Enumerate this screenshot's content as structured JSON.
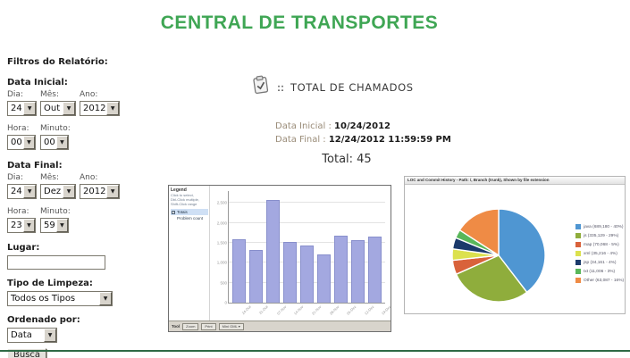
{
  "page": {
    "title": "CENTRAL DE TRANSPORTES",
    "accent_green": "#3fa654",
    "divider_color": "#2e6b46"
  },
  "sidebar": {
    "filters_title": "Filtros do Relatório:",
    "data_inicial": {
      "label": "Data Inicial:",
      "dia_label": "Dia:",
      "mes_label": "Mês:",
      "ano_label": "Ano:",
      "dia": "24",
      "mes": "Out",
      "ano": "2012",
      "hora_label": "Hora:",
      "minuto_label": "Minuto:",
      "hora": "00",
      "minuto": "00"
    },
    "data_final": {
      "label": "Data Final:",
      "dia_label": "Dia:",
      "mes_label": "Mês:",
      "ano_label": "Ano:",
      "dia": "24",
      "mes": "Dez",
      "ano": "2012",
      "hora_label": "Hora:",
      "minuto_label": "Minuto:",
      "hora": "23",
      "minuto": "59"
    },
    "lugar_label": "Lugar:",
    "lugar_value": "",
    "tipo_limpeza_label": "Tipo de Limpeza:",
    "tipo_limpeza_value": "Todos os Tipos",
    "ordenado_label": "Ordenado por:",
    "ordenado_value": "Data",
    "busca_label": "Busca"
  },
  "report": {
    "icon": "clipboard-check-icon",
    "separator": "::",
    "title": "TOTAL DE CHAMADOS",
    "data_inicial_label": "Data Inicial :",
    "data_inicial_value": "10/24/2012",
    "data_final_label": "Data Final :",
    "data_final_value": "12/24/2012 11:59:59 PM",
    "total_text": "Total: 45"
  },
  "chart_data": [
    {
      "type": "bar",
      "title": "",
      "categories": [
        "24-Out",
        "31-Out",
        "07-Nov",
        "14-Nov",
        "21-Nov",
        "28-Nov",
        "05-Dez",
        "12-Dez",
        "19-Dez"
      ],
      "values": [
        1600,
        1330,
        2580,
        1520,
        1440,
        1210,
        1670,
        1560,
        1650
      ],
      "ylabel": "",
      "xlabel": "",
      "ylim": [
        0,
        2800
      ],
      "yticks": [
        0,
        500,
        1000,
        1500,
        2000,
        2500
      ],
      "grid": true,
      "bar_color": "#a3a8e0",
      "bar_border": "#888fcc",
      "legend_panel": {
        "title": "Legend",
        "hints": [
          "Click to select,",
          "Dbl-Click multiple,",
          "Shift-Click range"
        ],
        "items": [
          {
            "label": "Totais",
            "checked": true,
            "selected": true
          },
          {
            "label": "Problem count",
            "checked": false,
            "selected": false
          }
        ]
      },
      "toolbar": {
        "label": "Tool",
        "buttons": [
          "Zoom",
          "Print",
          "Mini GML ▾"
        ]
      }
    },
    {
      "type": "pie",
      "title": "LOC and Commit History - Path: /, Branch (trunk), Shown by file extension",
      "labels": [
        "java",
        "js",
        "map",
        "xml",
        "jsp",
        "txt",
        "Other"
      ],
      "values_pct": [
        40,
        29,
        5,
        4,
        4,
        3,
        16
      ],
      "legend_entries": [
        "java (689,180 - 40%)",
        "js (335,129 - 29%)",
        "map (70,068 - 5%)",
        "xml (35,216 - 4%)",
        "jsp (34,161 - 4%)",
        "txt (11,006 - 3%)",
        "Other (63,087 - 16%)"
      ],
      "colors": [
        "#4f96d2",
        "#8fad3c",
        "#d9623b",
        "#dce14e",
        "#1b3a6b",
        "#59b75a",
        "#ef8b45"
      ],
      "legend_position": "right",
      "start_angle_deg": -90,
      "direction": "clockwise"
    }
  ]
}
